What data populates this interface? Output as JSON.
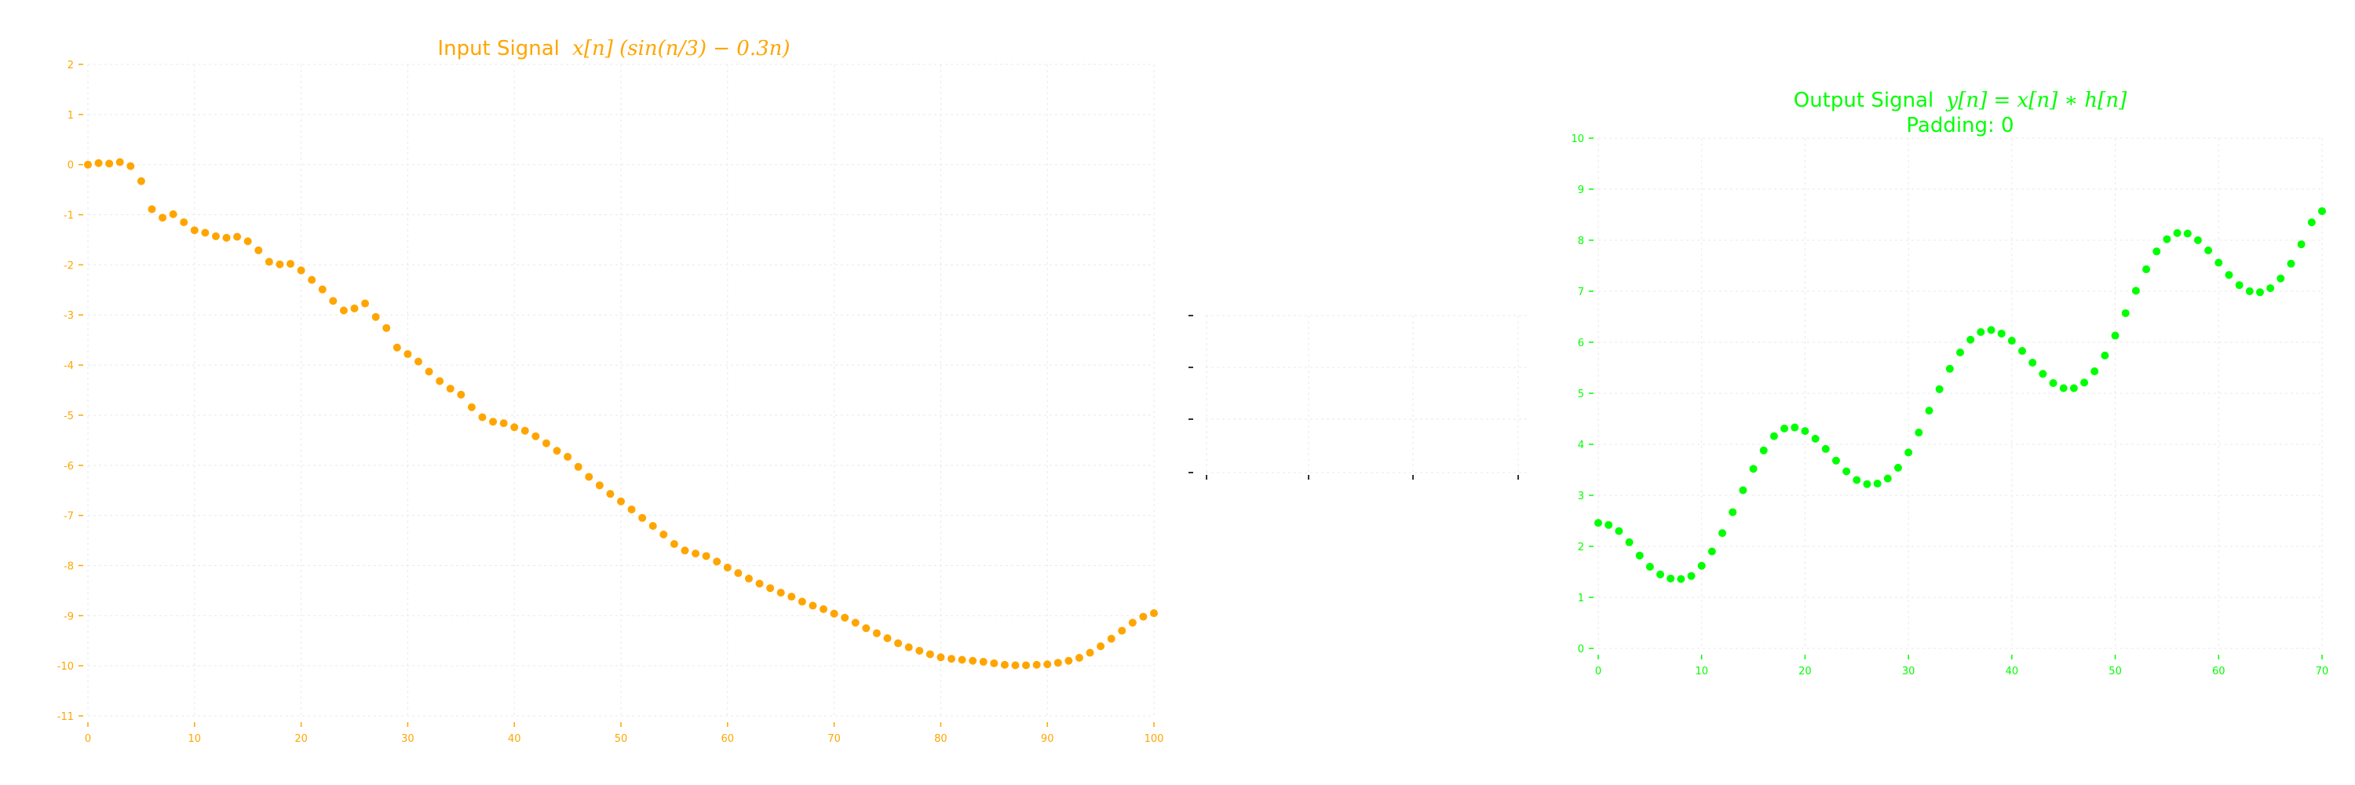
{
  "chart_data": [
    {
      "type": "scatter",
      "title_prefix": "Input Signal",
      "title_math": "x[n] (sin(n/3) − 0.3n)",
      "color": "#ffa500",
      "xlim": [
        0,
        100
      ],
      "ylim": [
        -11,
        2
      ],
      "grid": true,
      "xticks": [
        0,
        10,
        20,
        30,
        40,
        50,
        60,
        70,
        80,
        90,
        100
      ],
      "yticks": [
        -11,
        -10,
        -9,
        -8,
        -7,
        -6,
        -5,
        -4,
        -3,
        -2,
        -1,
        0,
        1,
        2
      ],
      "series": [
        {
          "x": [
            0,
            1,
            2,
            3,
            4,
            5,
            6,
            7,
            8,
            9,
            10,
            11,
            12,
            13,
            14,
            15,
            16,
            17,
            18,
            19,
            20,
            21,
            22,
            23,
            24,
            25,
            26,
            27,
            28,
            29,
            30,
            31,
            32,
            33,
            34,
            35,
            36,
            37,
            38,
            39,
            40,
            41,
            42,
            43,
            44,
            45,
            46,
            47,
            48,
            49,
            50,
            51,
            52,
            53,
            54,
            55,
            56,
            57,
            58,
            59,
            60,
            61,
            62,
            63,
            64,
            65,
            66,
            67,
            68,
            69,
            70,
            71,
            72,
            73,
            74,
            75,
            76,
            77,
            78,
            79,
            80,
            81,
            82,
            83,
            84,
            85,
            86,
            87,
            88,
            89,
            90,
            91,
            92,
            93,
            94,
            95,
            96,
            97,
            98,
            99,
            100
          ],
          "y": [
            0.0,
            0.03,
            0.02,
            0.05,
            -0.03,
            -0.33,
            -0.89,
            -1.06,
            -0.99,
            -1.15,
            -1.31,
            -1.36,
            -1.43,
            -1.46,
            -1.44,
            -1.53,
            -1.71,
            -1.94,
            -1.99,
            -1.98,
            -2.11,
            -2.3,
            -2.49,
            -2.72,
            -2.91,
            -2.87,
            -2.77,
            -3.04,
            -3.26,
            -3.65,
            -3.78,
            -3.93,
            -4.13,
            -4.32,
            -4.47,
            -4.59,
            -4.84,
            -5.04,
            -5.13,
            -5.16,
            -5.24,
            -5.31,
            -5.42,
            -5.56,
            -5.71,
            -5.83,
            -6.03,
            -6.23,
            -6.4,
            -6.57,
            -6.72,
            -6.88,
            -7.05,
            -7.21,
            -7.38,
            -7.57,
            -7.7,
            -7.76,
            -7.81,
            -7.92,
            -8.04,
            -8.15,
            -8.26,
            -8.36,
            -8.45,
            -8.54,
            -8.62,
            -8.72,
            -8.8,
            -8.87,
            -8.96,
            -9.04,
            -9.14,
            -9.25,
            -9.35,
            -9.45,
            -9.55,
            -9.63,
            -9.7,
            -9.77,
            -9.83,
            -9.86,
            -9.88,
            -9.9,
            -9.92,
            -9.95,
            -9.98,
            -9.99,
            -9.99,
            -9.98,
            -9.97,
            -9.94,
            -9.9,
            -9.84,
            -9.74,
            -9.61,
            -9.46,
            -9.3,
            -9.14,
            -9.02,
            -8.95
          ]
        }
      ]
    },
    {
      "type": "scatter",
      "title_prefix": "Output Signal",
      "title_math": "y[n] = x[n] ∗ h[n]",
      "subtitle": "Padding: 0",
      "color": "#00ff00",
      "xlim": [
        0,
        70
      ],
      "ylim": [
        0,
        10
      ],
      "grid": true,
      "xticks": [
        0,
        10,
        20,
        30,
        40,
        50,
        60,
        70
      ],
      "yticks": [
        0,
        1,
        2,
        3,
        4,
        5,
        6,
        7,
        8,
        9,
        10
      ],
      "series": [
        {
          "x": [
            0,
            1,
            2,
            3,
            4,
            5,
            6,
            7,
            8,
            9,
            10,
            11,
            12,
            13,
            14,
            15,
            16,
            17,
            18,
            19,
            20,
            21,
            22,
            23,
            24,
            25,
            26,
            27,
            28,
            29,
            30,
            31,
            32,
            33,
            34,
            35,
            36,
            37,
            38,
            39,
            40,
            41,
            42,
            43,
            44,
            45,
            46,
            47,
            48,
            49,
            50,
            51,
            52,
            53,
            54,
            55,
            56,
            57,
            58,
            59,
            60,
            61,
            62,
            63,
            64,
            65,
            66,
            67,
            68,
            69,
            70
          ],
          "y": [
            2.46,
            2.42,
            2.3,
            2.08,
            1.82,
            1.6,
            1.45,
            1.37,
            1.36,
            1.42,
            1.62,
            1.9,
            2.26,
            2.67,
            3.1,
            3.52,
            3.88,
            4.16,
            4.31,
            4.33,
            4.26,
            4.11,
            3.91,
            3.68,
            3.47,
            3.3,
            3.22,
            3.23,
            3.33,
            3.54,
            3.84,
            4.23,
            4.66,
            5.08,
            5.48,
            5.8,
            6.05,
            6.2,
            6.24,
            6.17,
            6.03,
            5.83,
            5.6,
            5.38,
            5.2,
            5.1,
            5.1,
            5.21,
            5.43,
            5.74,
            6.13,
            6.57,
            7.01,
            7.43,
            7.78,
            8.02,
            8.14,
            8.13,
            8.0,
            7.8,
            7.56,
            7.32,
            7.12,
            7.0,
            6.98,
            7.06,
            7.25,
            7.54,
            7.92,
            8.35,
            8.57
          ]
        }
      ]
    },
    {
      "type": "scatter",
      "color": "#333333",
      "grid": true,
      "series": []
    }
  ]
}
